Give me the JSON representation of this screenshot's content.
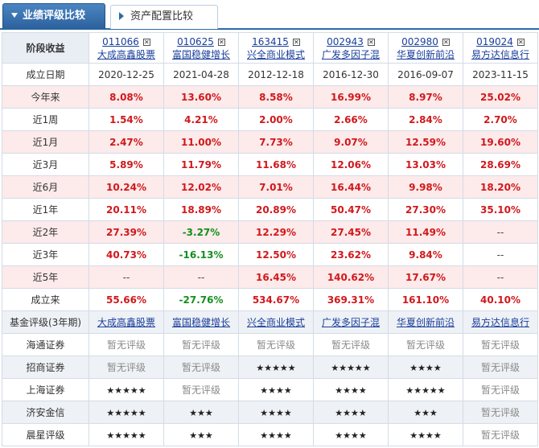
{
  "tabs": [
    {
      "label": "业绩评级比较",
      "active": true
    },
    {
      "label": "资产配置比较",
      "active": false
    }
  ],
  "header_label": "阶段收益",
  "funds": [
    {
      "code": "011066",
      "name": "大成高鑫股票"
    },
    {
      "code": "010625",
      "name": "富国稳健增长"
    },
    {
      "code": "163415",
      "name": "兴全商业模式"
    },
    {
      "code": "002943",
      "name": "广发多因子混"
    },
    {
      "code": "002980",
      "name": "华夏创新前沿"
    },
    {
      "code": "019024",
      "name": "易方达信息行"
    }
  ],
  "remove_glyph": "✕",
  "inception": {
    "label": "成立日期",
    "values": [
      "2020-12-25",
      "2021-04-28",
      "2012-12-18",
      "2016-12-30",
      "2016-09-07",
      "2023-11-15"
    ]
  },
  "returns": [
    {
      "label": "今年来",
      "values": [
        "8.08%",
        "13.60%",
        "8.58%",
        "16.99%",
        "8.97%",
        "25.02%"
      ]
    },
    {
      "label": "近1周",
      "values": [
        "1.54%",
        "4.21%",
        "2.00%",
        "2.66%",
        "2.84%",
        "2.70%"
      ]
    },
    {
      "label": "近1月",
      "values": [
        "2.47%",
        "11.00%",
        "7.73%",
        "9.07%",
        "12.59%",
        "19.60%"
      ]
    },
    {
      "label": "近3月",
      "values": [
        "5.89%",
        "11.79%",
        "11.68%",
        "12.06%",
        "13.03%",
        "28.69%"
      ]
    },
    {
      "label": "近6月",
      "values": [
        "10.24%",
        "12.02%",
        "7.01%",
        "16.44%",
        "9.98%",
        "18.20%"
      ]
    },
    {
      "label": "近1年",
      "values": [
        "20.11%",
        "18.89%",
        "20.89%",
        "50.47%",
        "27.30%",
        "35.10%"
      ]
    },
    {
      "label": "近2年",
      "values": [
        "27.39%",
        "-3.27%",
        "12.29%",
        "27.45%",
        "11.49%",
        "--"
      ]
    },
    {
      "label": "近3年",
      "values": [
        "40.73%",
        "-16.13%",
        "12.50%",
        "23.62%",
        "9.84%",
        "--"
      ]
    },
    {
      "label": "近5年",
      "values": [
        "--",
        "--",
        "16.45%",
        "140.62%",
        "17.67%",
        "--"
      ]
    },
    {
      "label": "成立来",
      "values": [
        "55.66%",
        "-27.76%",
        "534.67%",
        "369.31%",
        "161.10%",
        "40.10%"
      ]
    }
  ],
  "rating_header": "基金评级(3年期)",
  "ratings": [
    {
      "label": "海通证券",
      "values": [
        "暂无评级",
        "暂无评级",
        "暂无评级",
        "暂无评级",
        "暂无评级",
        "暂无评级"
      ]
    },
    {
      "label": "招商证券",
      "values": [
        "暂无评级",
        "暂无评级",
        "★★★★★",
        "★★★★★",
        "★★★★",
        "暂无评级"
      ]
    },
    {
      "label": "上海证券",
      "values": [
        "★★★★★",
        "暂无评级",
        "★★★★",
        "★★★★",
        "★★★★★",
        "暂无评级"
      ]
    },
    {
      "label": "济安金信",
      "values": [
        "★★★★★",
        "★★★",
        "★★★★",
        "★★★★",
        "★★★",
        "暂无评级"
      ]
    },
    {
      "label": "晨星评级",
      "values": [
        "★★★★★",
        "★★★",
        "★★★★",
        "★★★★",
        "★★★★",
        "暂无评级"
      ]
    }
  ],
  "colors": {
    "positive": "#d0191c",
    "negative": "#12901d",
    "accent": "#2d6aa8"
  }
}
